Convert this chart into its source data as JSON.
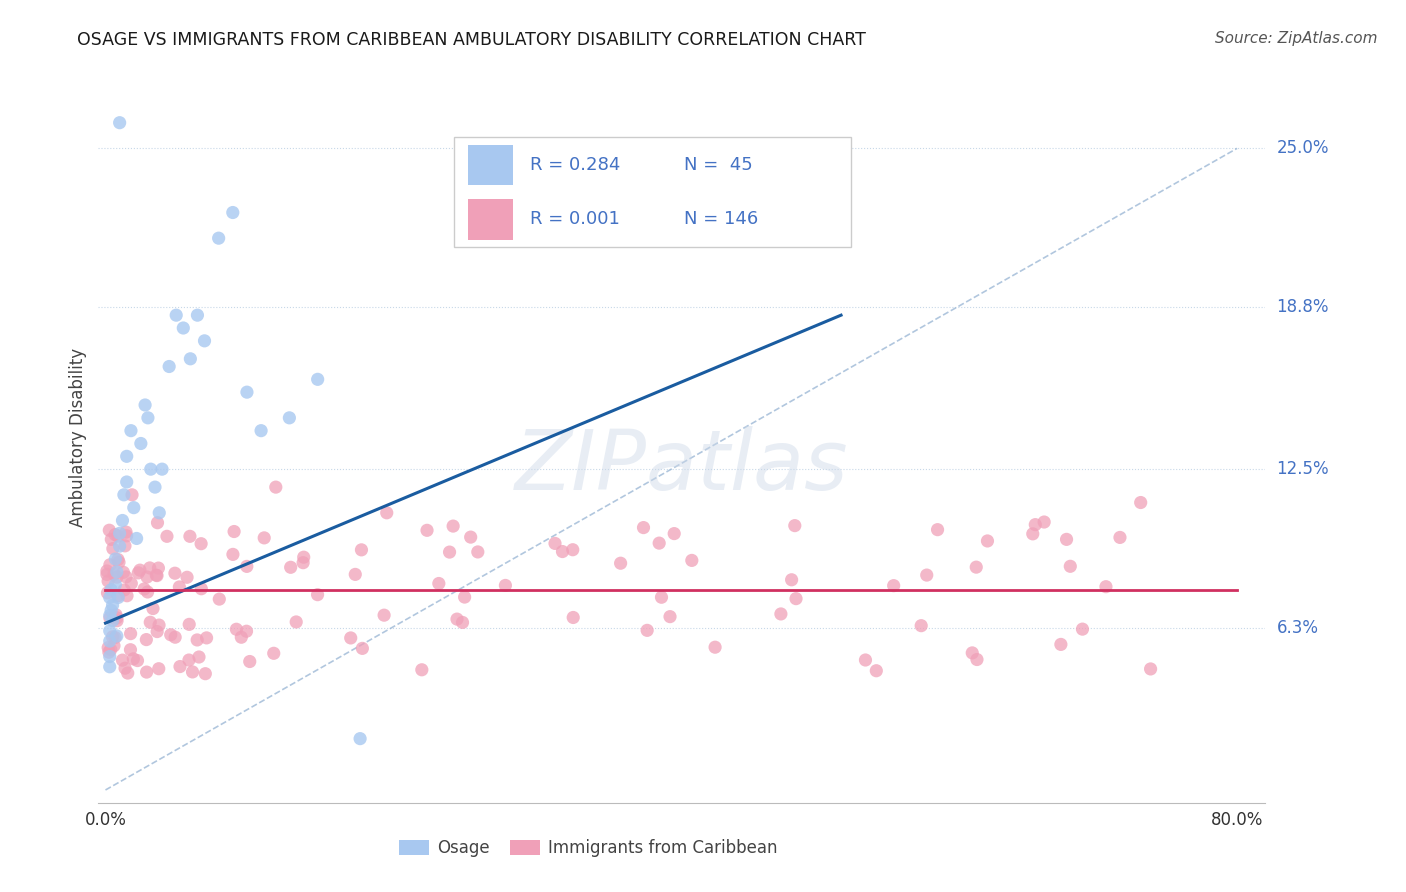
{
  "title": "OSAGE VS IMMIGRANTS FROM CARIBBEAN AMBULATORY DISABILITY CORRELATION CHART",
  "source": "Source: ZipAtlas.com",
  "ylabel": "Ambulatory Disability",
  "watermark": "ZIPatlas",
  "osage_R": "R = 0.284",
  "osage_N": "N =  45",
  "carib_R": "R = 0.001",
  "carib_N": "N = 146",
  "y_tick_labels": [
    "6.3%",
    "12.5%",
    "18.8%",
    "25.0%"
  ],
  "y_tick_values": [
    0.063,
    0.125,
    0.188,
    0.25
  ],
  "x_lim": [
    0.0,
    0.8
  ],
  "y_lim": [
    -0.005,
    0.28
  ],
  "osage_color": "#a8c8f0",
  "osage_line_color": "#1a5ca0",
  "carib_color": "#f0a0b8",
  "carib_line_color": "#d03060",
  "diagonal_line_color": "#90afd0",
  "grid_color": "#c8d8e8",
  "title_color": "#1a1a1a",
  "right_label_color": "#4472c4",
  "tick_label_color": "#333333",
  "background_color": "#ffffff",
  "legend_label_color": "#4472c4",
  "bottom_legend_color": "#444444"
}
